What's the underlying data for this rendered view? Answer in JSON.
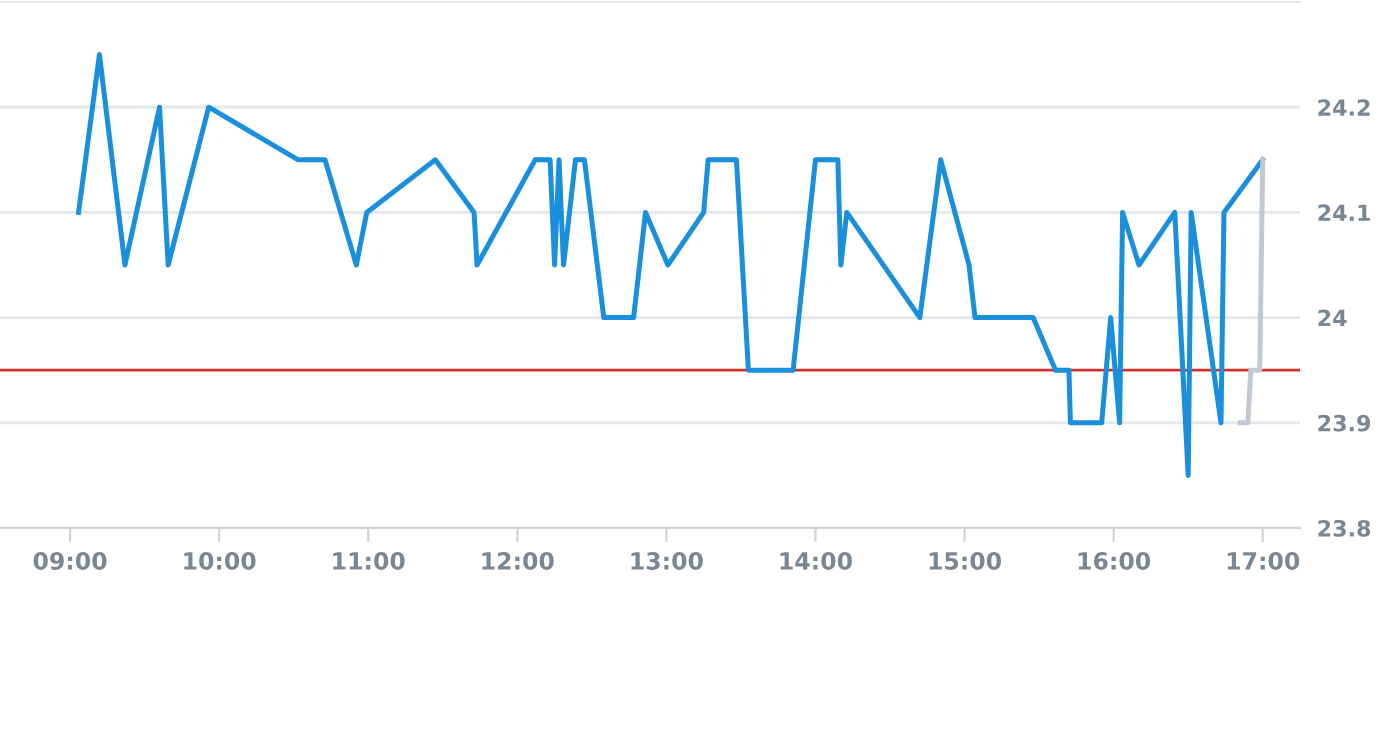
{
  "chart_data": {
    "type": "line",
    "xlim": [
      8.53,
      17.25
    ],
    "ylim": [
      23.8,
      24.3
    ],
    "xticks": [
      {
        "value": 9,
        "label": "09:00"
      },
      {
        "value": 10,
        "label": "10:00"
      },
      {
        "value": 11,
        "label": "11:00"
      },
      {
        "value": 12,
        "label": "12:00"
      },
      {
        "value": 13,
        "label": "13:00"
      },
      {
        "value": 14,
        "label": "14:00"
      },
      {
        "value": 15,
        "label": "15:00"
      },
      {
        "value": 16,
        "label": "16:00"
      },
      {
        "value": 17,
        "label": "17:00"
      }
    ],
    "yticks": [
      23.8,
      23.9,
      {
        "value": 24,
        "label": "24"
      },
      24.1,
      24.2
    ],
    "grid": "y",
    "marker": "none",
    "line_style": "solid",
    "series": [
      {
        "color": "#1a8fdc",
        "x": [
          9.057,
          9.197,
          9.368,
          9.6,
          9.658,
          9.93,
          10.53,
          10.71,
          10.92,
          10.99,
          11.45,
          11.71,
          11.73,
          12.12,
          12.22,
          12.25,
          12.28,
          12.31,
          12.39,
          12.45,
          12.58,
          12.78,
          12.86,
          13.01,
          13.25,
          13.28,
          13.47,
          13.55,
          13.85,
          14.0,
          14.15,
          14.17,
          14.21,
          14.7,
          14.84,
          15.03,
          15.07,
          15.46,
          15.61,
          15.7,
          15.71,
          15.92,
          15.98,
          16.04,
          16.06,
          16.17,
          16.41,
          16.5,
          16.52,
          16.72,
          16.74,
          17.0
        ],
        "values": [
          24.1,
          24.25,
          24.05,
          24.2,
          24.05,
          24.2,
          24.15,
          24.15,
          24.05,
          24.1,
          24.15,
          24.1,
          24.05,
          24.15,
          24.15,
          24.05,
          24.15,
          24.05,
          24.15,
          24.15,
          24.0,
          24.0,
          24.1,
          24.05,
          24.1,
          24.15,
          24.15,
          23.95,
          23.95,
          24.15,
          24.15,
          24.05,
          24.1,
          24.0,
          24.15,
          24.05,
          24.0,
          24.0,
          23.95,
          23.95,
          23.9,
          23.9,
          24.0,
          23.9,
          24.1,
          24.05,
          24.1,
          23.85,
          24.1,
          23.9,
          24.1,
          24.15
        ]
      },
      {
        "color": "#c0c8d2",
        "x": [
          16.85,
          16.9,
          16.92,
          16.98,
          17.0
        ],
        "values": [
          23.9,
          23.9,
          23.95,
          23.95,
          24.15
        ]
      }
    ],
    "ref_lines": [
      {
        "axis": "y",
        "value": 23.95,
        "color": "#d0312d"
      }
    ]
  }
}
